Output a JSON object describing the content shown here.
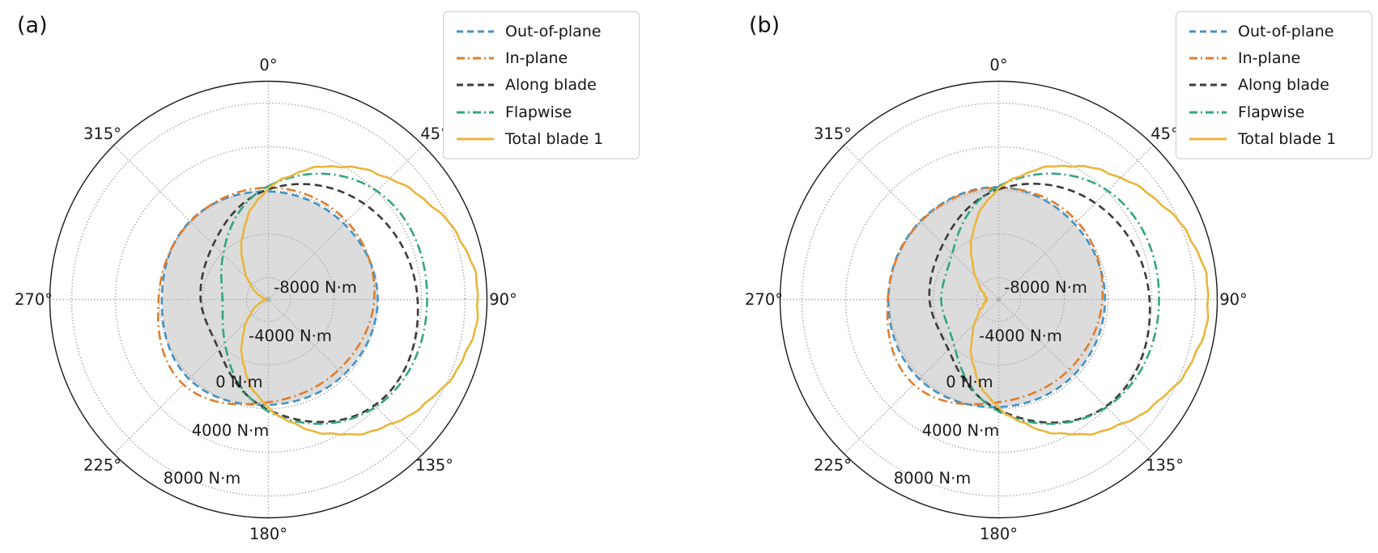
{
  "panels": [
    {
      "title": "(a)"
    },
    {
      "title": "(b)"
    }
  ],
  "legend": {
    "entries": [
      {
        "label": "Out-of-plane",
        "style": "dashed",
        "color": "#4393c3"
      },
      {
        "label": "In-plane",
        "style": "dashdot",
        "color": "#dd7e30"
      },
      {
        "label": "Along blade",
        "style": "dashed",
        "color": "#3b3b3b"
      },
      {
        "label": "Flapwise",
        "style": "dashdot",
        "color": "#33a584"
      },
      {
        "label": "Total blade 1",
        "style": "solid",
        "color": "#e9b63c"
      }
    ]
  },
  "style_colors": {
    "grid": "#b4b4b4",
    "outer_circle": "#1a1a1a",
    "fill_region": "#dcdcdc",
    "text": "#1a1a1a",
    "background": "#ffffff"
  },
  "chart_data": [
    {
      "type": "line",
      "projection": "polar",
      "panel": "a",
      "units": "N·m",
      "rlim": [
        -10000,
        10000
      ],
      "grid": true,
      "legend_position": "upper-right",
      "azimuth_deg": [
        0,
        45,
        90,
        135,
        180,
        225,
        270,
        315
      ],
      "theta_tick_labels": [
        "0°",
        "45°",
        "90°",
        "135°",
        "180°",
        "225°",
        "270°",
        "315°"
      ],
      "r_ticks": [
        -8000,
        -4000,
        0,
        4000,
        8000
      ],
      "r_tick_labels": [
        "-8000 N·m",
        "-4000 N·m",
        "0 N·m",
        "4000 N·m",
        "8000 N·m"
      ],
      "series": [
        {
          "name": "Out-of-plane",
          "color": "#4393c3",
          "linestyle": "dashed",
          "values": [
            -100,
            -200,
            0,
            -250,
            -350,
            280,
            -250,
            150
          ],
          "filled": true
        },
        {
          "name": "In-plane",
          "color": "#dd7e30",
          "linestyle": "dashdot",
          "values": [
            250,
            140,
            -320,
            -900,
            -600,
            1000,
            50,
            100
          ]
        },
        {
          "name": "Along blade",
          "color": "#3b3b3b",
          "linestyle": "dashed",
          "values": [
            100,
            2400,
            3650,
            3720,
            100,
            -3560,
            -3800,
            -2870
          ]
        },
        {
          "name": "Flapwise",
          "color": "#33a584",
          "linestyle": "dashdot",
          "values": [
            400,
            4050,
            4520,
            3900,
            250,
            -4370,
            -5800,
            -4150
          ]
        },
        {
          "name": "Total blade 1",
          "color": "#e9b63c",
          "linestyle": "solid",
          "values": [
            150,
            5700,
            9200,
            6100,
            -100,
            -7200,
            -9900,
            -7300
          ],
          "noisy": true
        }
      ]
    },
    {
      "type": "line",
      "projection": "polar",
      "panel": "b",
      "units": "N·m",
      "rlim": [
        -10000,
        10000
      ],
      "grid": true,
      "legend_position": "upper-right",
      "azimuth_deg": [
        0,
        45,
        90,
        135,
        180,
        225,
        270,
        315
      ],
      "theta_tick_labels": [
        "0°",
        "45°",
        "90°",
        "135°",
        "180°",
        "225°",
        "270°",
        "315°"
      ],
      "r_ticks": [
        -8000,
        -4000,
        0,
        4000,
        8000
      ],
      "r_tick_labels": [
        "-8000 N·m",
        "-4000 N·m",
        "0 N·m",
        "4000 N·m",
        "8000 N·m"
      ],
      "series": [
        {
          "name": "Out-of-plane",
          "color": "#4393c3",
          "linestyle": "dashed",
          "values": [
            300,
            -200,
            -270,
            -250,
            -150,
            280,
            100,
            150
          ],
          "filled": true
        },
        {
          "name": "In-plane",
          "color": "#dd7e30",
          "linestyle": "dashdot",
          "values": [
            250,
            140,
            -520,
            -900,
            -600,
            1000,
            150,
            100
          ]
        },
        {
          "name": "Along blade",
          "color": "#3b3b3b",
          "linestyle": "dashed",
          "values": [
            100,
            2500,
            3800,
            3850,
            100,
            -3500,
            -3670,
            -2800
          ]
        },
        {
          "name": "Flapwise",
          "color": "#33a584",
          "linestyle": "dashdot",
          "values": [
            400,
            4100,
            4670,
            3950,
            250,
            -4200,
            -4740,
            -4000
          ]
        },
        {
          "name": "Total blade 1",
          "color": "#e9b63c",
          "linestyle": "solid",
          "values": [
            150,
            5800,
            9200,
            6100,
            -100,
            -6900,
            -8860,
            -7000
          ],
          "noisy": true
        }
      ]
    }
  ]
}
